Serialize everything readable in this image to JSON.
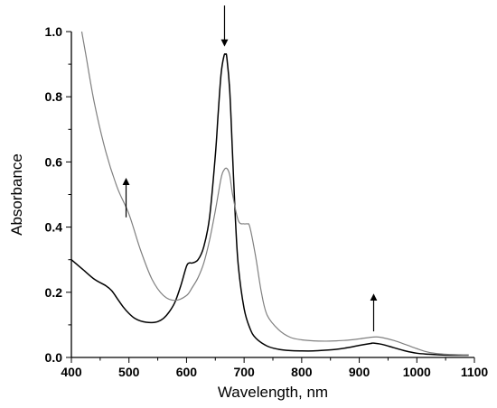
{
  "chart_data": {
    "type": "line",
    "title": "",
    "xlabel": "Wavelength, nm",
    "ylabel": "Absorbance",
    "xlim": [
      400,
      1100
    ],
    "ylim": [
      0.0,
      1.0
    ],
    "xticks": [
      400,
      500,
      600,
      700,
      800,
      900,
      1000,
      1100
    ],
    "yticks": [
      0.0,
      0.2,
      0.4,
      0.6,
      0.8,
      1.0
    ],
    "xtick_labels": [
      "400",
      "500",
      "600",
      "700",
      "800",
      "900",
      "1000",
      "1100"
    ],
    "ytick_labels": [
      "0.0",
      "0.2",
      "0.4",
      "0.6",
      "0.8",
      "1.0"
    ],
    "grid": false,
    "legend": "none",
    "series": [
      {
        "color": "#000000",
        "x": [
          400,
          420,
          440,
          460,
          470,
          480,
          490,
          500,
          510,
          520,
          530,
          540,
          550,
          560,
          570,
          580,
          590,
          600,
          605,
          610,
          620,
          630,
          640,
          650,
          655,
          660,
          665,
          668,
          670,
          675,
          680,
          685,
          690,
          700,
          710,
          720,
          740,
          760,
          780,
          800,
          820,
          840,
          860,
          880,
          900,
          920,
          925,
          940,
          960,
          980,
          1000,
          1020,
          1040,
          1060,
          1080,
          1090
        ],
        "y": [
          0.3,
          0.27,
          0.24,
          0.22,
          0.205,
          0.18,
          0.155,
          0.135,
          0.12,
          0.112,
          0.108,
          0.107,
          0.11,
          0.12,
          0.14,
          0.17,
          0.22,
          0.28,
          0.29,
          0.29,
          0.3,
          0.34,
          0.43,
          0.62,
          0.75,
          0.87,
          0.925,
          0.93,
          0.92,
          0.82,
          0.62,
          0.42,
          0.28,
          0.15,
          0.09,
          0.06,
          0.035,
          0.025,
          0.021,
          0.02,
          0.02,
          0.022,
          0.025,
          0.03,
          0.037,
          0.043,
          0.044,
          0.04,
          0.03,
          0.02,
          0.013,
          0.01,
          0.008,
          0.007,
          0.007,
          0.007
        ]
      },
      {
        "color": "#808080",
        "x": [
          418,
          425,
          440,
          460,
          480,
          500,
          520,
          540,
          560,
          580,
          600,
          610,
          620,
          630,
          640,
          650,
          660,
          665,
          670,
          675,
          680,
          690,
          700,
          705,
          710,
          720,
          730,
          740,
          760,
          780,
          800,
          820,
          840,
          860,
          880,
          900,
          920,
          930,
          940,
          960,
          980,
          1000,
          1020,
          1040,
          1060,
          1080,
          1090
        ],
        "y": [
          1.0,
          0.93,
          0.78,
          0.63,
          0.52,
          0.44,
          0.33,
          0.24,
          0.19,
          0.175,
          0.19,
          0.215,
          0.245,
          0.29,
          0.36,
          0.45,
          0.55,
          0.575,
          0.58,
          0.56,
          0.5,
          0.42,
          0.41,
          0.41,
          0.4,
          0.31,
          0.2,
          0.13,
          0.085,
          0.062,
          0.054,
          0.051,
          0.05,
          0.051,
          0.053,
          0.057,
          0.062,
          0.063,
          0.061,
          0.052,
          0.04,
          0.027,
          0.016,
          0.011,
          0.009,
          0.008,
          0.008
        ]
      }
    ],
    "annotations": [
      {
        "type": "arrow",
        "direction": "up",
        "x": 495,
        "y_from": 0.43,
        "y_to": 0.54
      },
      {
        "type": "arrow",
        "direction": "down",
        "x": 666,
        "y_from": 1.08,
        "y_to": 0.965
      },
      {
        "type": "arrow",
        "direction": "up",
        "x": 925,
        "y_from": 0.08,
        "y_to": 0.185
      }
    ]
  }
}
